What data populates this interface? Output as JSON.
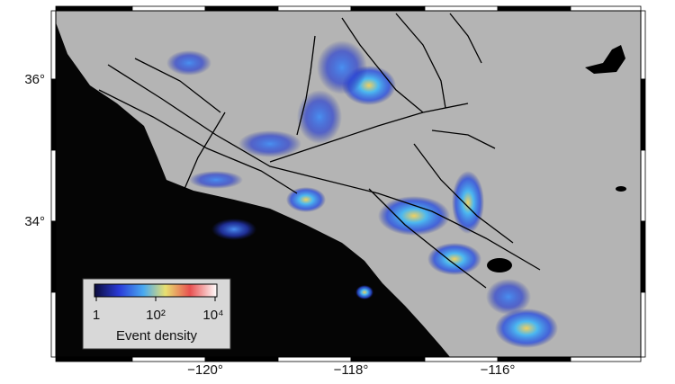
{
  "map": {
    "lat_ticks": [
      "36°",
      "34°"
    ],
    "lon_ticks": [
      "−120°",
      "−118°",
      "−116°"
    ],
    "colorbar": {
      "tick_labels": [
        "1",
        "10²",
        "10⁴"
      ],
      "title": "Event density"
    }
  }
}
